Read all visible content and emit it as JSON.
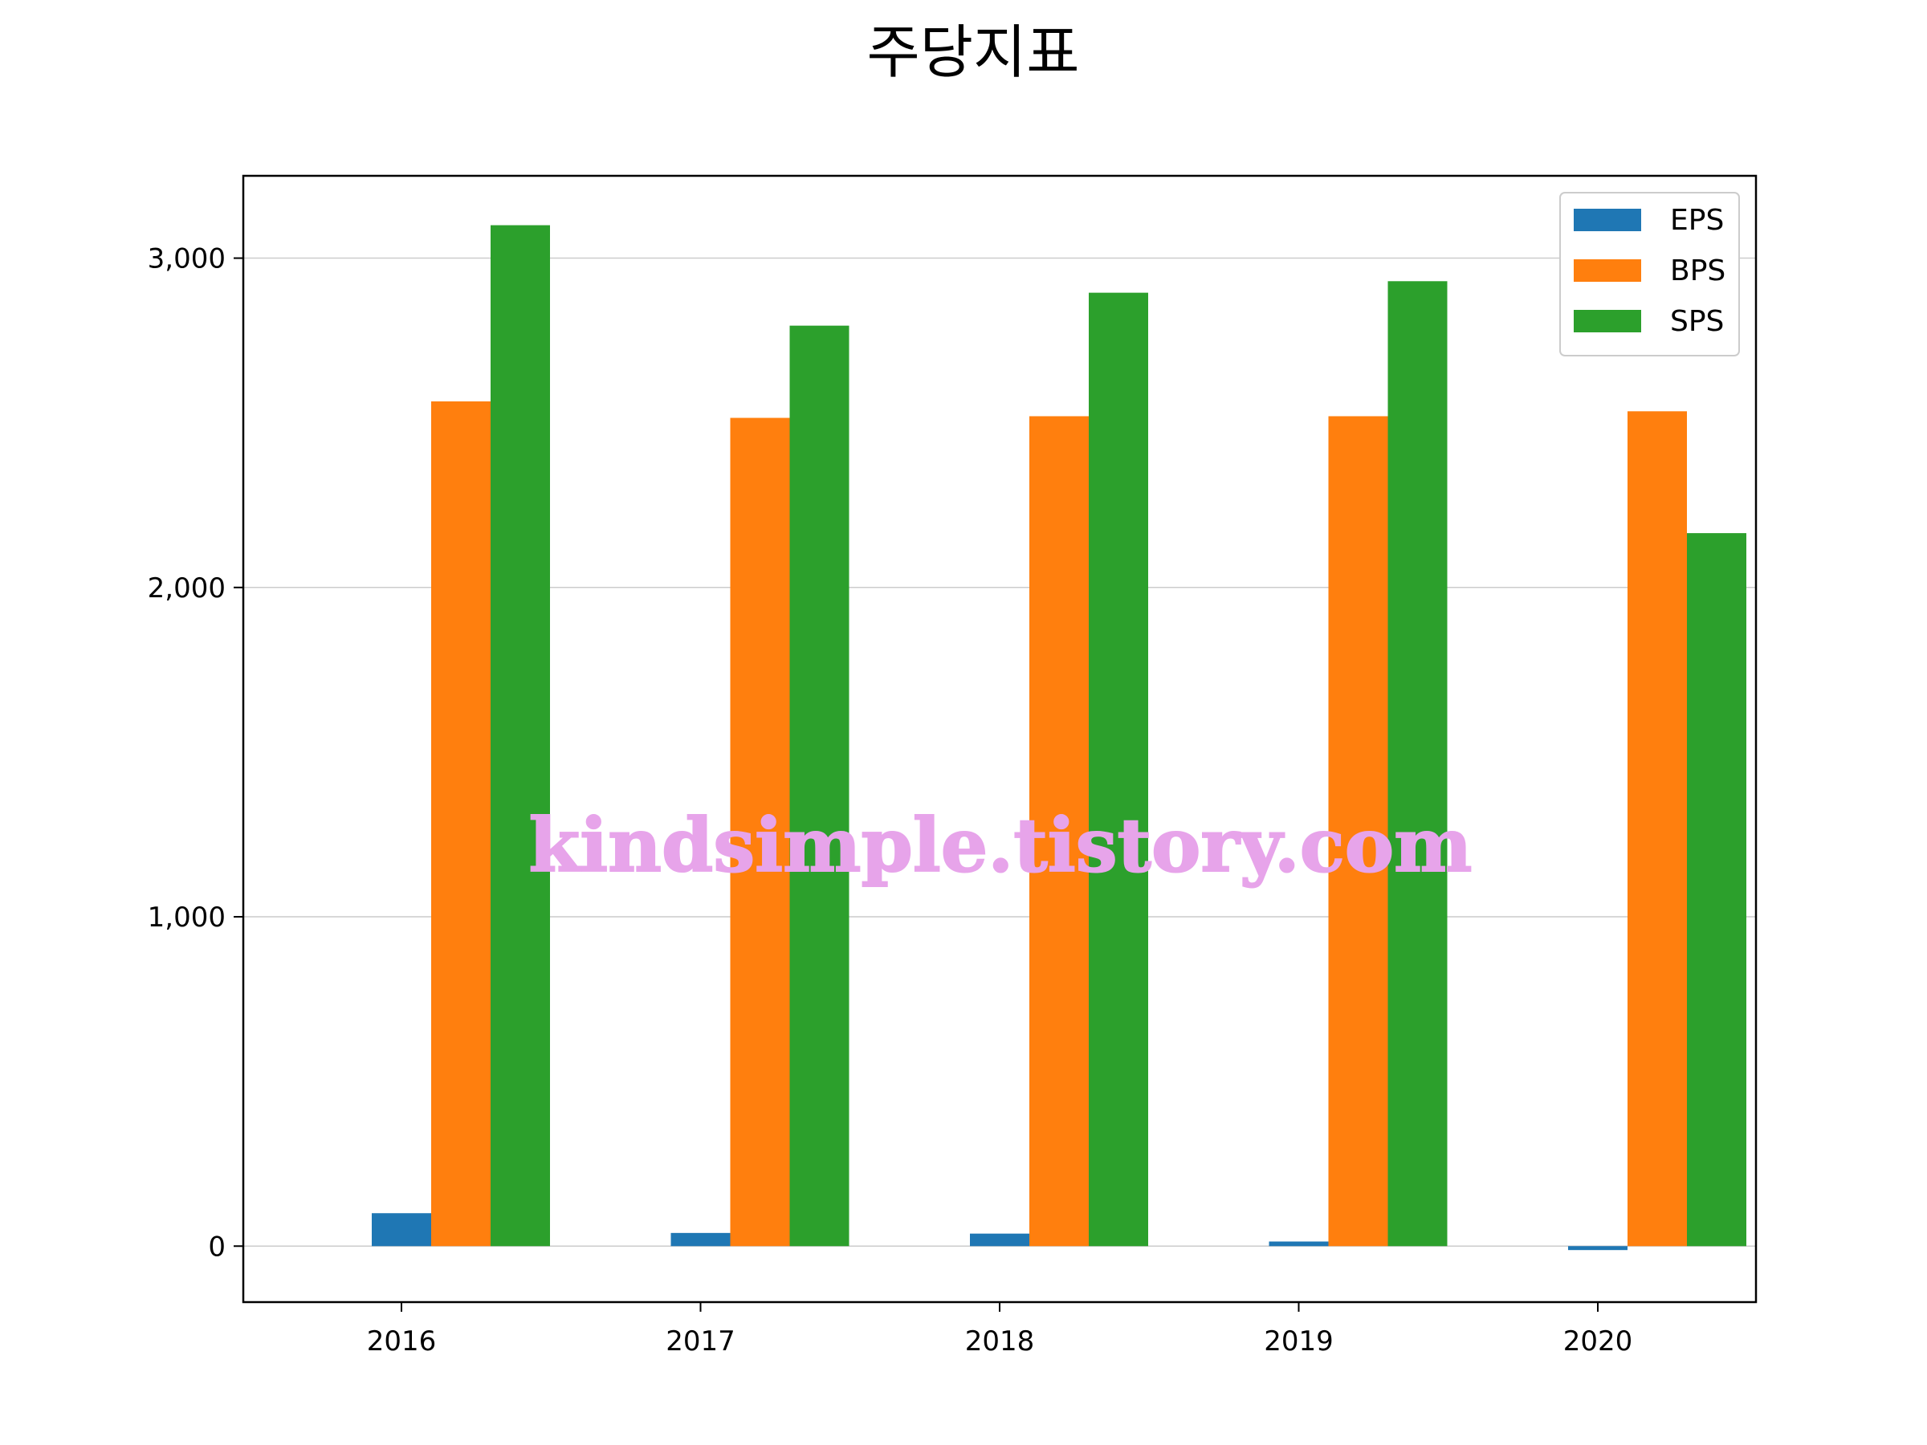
{
  "chart_data": {
    "type": "bar",
    "title": "주당지표",
    "categories": [
      "2016",
      "2017",
      "2018",
      "2019",
      "2020"
    ],
    "series": [
      {
        "name": "EPS",
        "color": "#1f77b4",
        "values": [
          100,
          40,
          38,
          14,
          -12
        ]
      },
      {
        "name": "BPS",
        "color": "#ff7f0e",
        "values": [
          2565,
          2515,
          2520,
          2520,
          2535
        ]
      },
      {
        "name": "SPS",
        "color": "#2ca02c",
        "values": [
          3100,
          2795,
          2895,
          2930,
          2165
        ]
      }
    ],
    "xlabel": "",
    "ylabel": "",
    "ylim": [
      -170,
      3250
    ],
    "yticks": [
      0,
      1000,
      2000,
      3000
    ],
    "ytick_labels": [
      "0",
      "1,000",
      "2,000",
      "3,000"
    ],
    "grid": "y",
    "legend": "top-right"
  },
  "watermark": "kindsimple.tistory.com"
}
